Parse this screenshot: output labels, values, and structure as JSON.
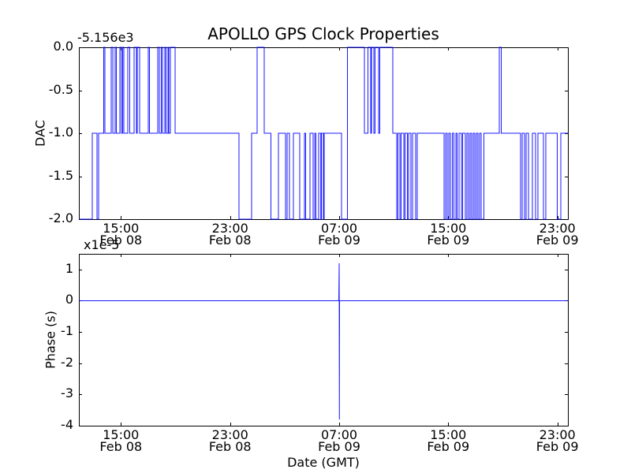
{
  "figure": {
    "title": "APOLLO GPS Clock Properties",
    "background": "#ffffff"
  },
  "colors": {
    "line": "#0000ff",
    "axis": "#000000",
    "text": "#000000"
  },
  "chart_data": [
    {
      "type": "line",
      "id": "dac",
      "title": "APOLLO GPS Clock Properties",
      "ylabel": "DAC",
      "y_offset_text": "-5.156e3",
      "y_offset_value": -5156,
      "ylim": [
        -2,
        0
      ],
      "grid": false,
      "yticks": {
        "values": [
          0,
          -0.5,
          -1,
          -1.5,
          -2
        ],
        "labels": [
          "0.0",
          "-0.5",
          "-1.0",
          "-1.5",
          "-2.0"
        ]
      },
      "xticks": {
        "fractions": [
          0.086,
          0.3092,
          0.5323,
          0.7553,
          0.9785
        ],
        "labels": [
          [
            "15:00",
            "Feb 08"
          ],
          [
            "23:00",
            "Feb 08"
          ],
          [
            "07:00",
            "Feb 09"
          ],
          [
            "15:00",
            "Feb 09"
          ],
          [
            "23:00",
            "Feb 09"
          ]
        ]
      },
      "draw_style": "steps-post",
      "series": [
        {
          "name": "DAC",
          "color": "#0000ff",
          "steps": [
            [
              0,
              -2
            ],
            [
              0.0274,
              -1
            ],
            [
              0.0371,
              -2
            ],
            [
              0.0403,
              -1
            ],
            [
              0.0508,
              0
            ],
            [
              0.0532,
              -1
            ],
            [
              0.0661,
              0
            ],
            [
              0.0694,
              -1
            ],
            [
              0.0742,
              0
            ],
            [
              0.0766,
              -1
            ],
            [
              0.0839,
              0
            ],
            [
              0.0871,
              -1
            ],
            [
              0.0895,
              0
            ],
            [
              0.0919,
              -1
            ],
            [
              0.1,
              0
            ],
            [
              0.104,
              -1
            ],
            [
              0.1129,
              0
            ],
            [
              0.1177,
              -1
            ],
            [
              0.1194,
              0
            ],
            [
              0.1242,
              -1
            ],
            [
              0.1419,
              0
            ],
            [
              0.1444,
              -1
            ],
            [
              0.1613,
              0
            ],
            [
              0.1645,
              -1
            ],
            [
              0.1685,
              0
            ],
            [
              0.171,
              -1
            ],
            [
              0.1758,
              0
            ],
            [
              0.1782,
              -1
            ],
            [
              0.1823,
              0
            ],
            [
              0.1839,
              -1
            ],
            [
              0.1871,
              0
            ],
            [
              0.1968,
              -1
            ],
            [
              0.3274,
              -2
            ],
            [
              0.3532,
              -1
            ],
            [
              0.3645,
              0
            ],
            [
              0.379,
              -1
            ],
            [
              0.3927,
              -2
            ],
            [
              0.4081,
              -1
            ],
            [
              0.4226,
              -2
            ],
            [
              0.4258,
              -1
            ],
            [
              0.4306,
              -2
            ],
            [
              0.4387,
              -1
            ],
            [
              0.4516,
              -2
            ],
            [
              0.4613,
              -1
            ],
            [
              0.4637,
              -2
            ],
            [
              0.4726,
              -1
            ],
            [
              0.479,
              -2
            ],
            [
              0.4823,
              -1
            ],
            [
              0.4847,
              -2
            ],
            [
              0.4903,
              -1
            ],
            [
              0.4947,
              -2
            ],
            [
              0.496,
              -1
            ],
            [
              0.5,
              -2
            ],
            [
              0.5016,
              -1
            ],
            [
              0.5371,
              -2
            ],
            [
              0.5492,
              0
            ],
            [
              0.5839,
              -1
            ],
            [
              0.5911,
              0
            ],
            [
              0.5968,
              -1
            ],
            [
              0.5984,
              0
            ],
            [
              0.6032,
              -1
            ],
            [
              0.6056,
              0
            ],
            [
              0.6129,
              -1
            ],
            [
              0.6153,
              0
            ],
            [
              0.6419,
              -1
            ],
            [
              0.65,
              -2
            ],
            [
              0.6524,
              -1
            ],
            [
              0.6565,
              -2
            ],
            [
              0.6589,
              -1
            ],
            [
              0.6645,
              -2
            ],
            [
              0.6669,
              -1
            ],
            [
              0.6718,
              -2
            ],
            [
              0.6742,
              -1
            ],
            [
              0.679,
              -2
            ],
            [
              0.6823,
              -1
            ],
            [
              0.6887,
              -2
            ],
            [
              0.6919,
              -1
            ],
            [
              0.7468,
              -2
            ],
            [
              0.75,
              -1
            ],
            [
              0.7532,
              -2
            ],
            [
              0.7565,
              -1
            ],
            [
              0.7597,
              -2
            ],
            [
              0.7637,
              -1
            ],
            [
              0.7669,
              -2
            ],
            [
              0.771,
              -1
            ],
            [
              0.7734,
              -2
            ],
            [
              0.7774,
              -1
            ],
            [
              0.7823,
              -2
            ],
            [
              0.7847,
              -1
            ],
            [
              0.7903,
              -2
            ],
            [
              0.7935,
              -1
            ],
            [
              0.7968,
              -2
            ],
            [
              0.8,
              -1
            ],
            [
              0.8032,
              -2
            ],
            [
              0.8065,
              -1
            ],
            [
              0.8097,
              -2
            ],
            [
              0.8129,
              -1
            ],
            [
              0.8161,
              -2
            ],
            [
              0.8194,
              -1
            ],
            [
              0.8226,
              -2
            ],
            [
              0.8282,
              -1
            ],
            [
              0.8597,
              0
            ],
            [
              0.8637,
              -1
            ],
            [
              0.9032,
              -2
            ],
            [
              0.9065,
              -1
            ],
            [
              0.9113,
              -2
            ],
            [
              0.9145,
              -1
            ],
            [
              0.9194,
              -2
            ],
            [
              0.9274,
              -1
            ],
            [
              0.9339,
              -2
            ],
            [
              0.9387,
              -1
            ],
            [
              0.95,
              -2
            ],
            [
              0.9548,
              -1
            ],
            [
              0.9782,
              -2
            ],
            [
              0.9855,
              -1
            ]
          ]
        }
      ]
    },
    {
      "type": "line",
      "id": "phase",
      "ylabel": "Phase (s)",
      "xlabel": "Date (GMT)",
      "y_offset_text": "x1e-5",
      "y_scale": "1e-5",
      "ylim": [
        -4,
        1.5
      ],
      "grid": false,
      "yticks": {
        "values": [
          1,
          0,
          -1,
          -2,
          -3,
          -4
        ],
        "labels": [
          "1",
          "0",
          "-1",
          "-2",
          "-3",
          "-4"
        ]
      },
      "xticks": {
        "fractions": [
          0.086,
          0.3092,
          0.5323,
          0.7553,
          0.9785
        ],
        "labels": [
          [
            "15:00",
            "Feb 08"
          ],
          [
            "23:00",
            "Feb 08"
          ],
          [
            "07:00",
            "Feb 09"
          ],
          [
            "15:00",
            "Feb 09"
          ],
          [
            "23:00",
            "Feb 09"
          ]
        ]
      },
      "draw_style": "line",
      "series": [
        {
          "name": "Phase",
          "color": "#0000ff",
          "points": [
            [
              0,
              0
            ],
            [
              0.5315,
              0
            ],
            [
              0.5323,
              1.2
            ],
            [
              0.5327,
              -3.8
            ],
            [
              0.5331,
              0
            ],
            [
              1,
              0
            ]
          ]
        }
      ]
    }
  ]
}
